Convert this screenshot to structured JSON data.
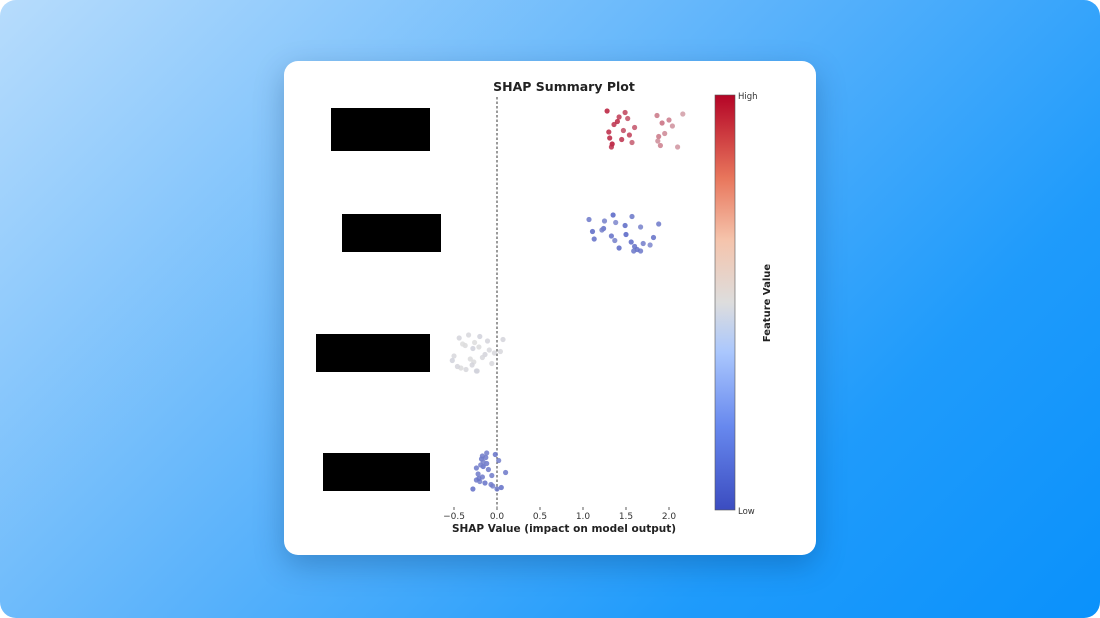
{
  "chart_data": {
    "type": "scatter",
    "title": "SHAP Summary Plot",
    "xlabel": "SHAP Value (impact on model output)",
    "xlim": [
      -0.6,
      2.35
    ],
    "xticks": [
      {
        "value": -0.5,
        "label": "−0.5"
      },
      {
        "value": 0.0,
        "label": "0.0"
      },
      {
        "value": 0.5,
        "label": "0.5"
      },
      {
        "value": 1.0,
        "label": "1.0"
      },
      {
        "value": 1.5,
        "label": "1.5"
      },
      {
        "value": 2.0,
        "label": "2.0"
      }
    ],
    "zero_line": "dashed",
    "features_redacted": true,
    "colorbar": {
      "label": "Feature Value",
      "high_label": "High",
      "low_label": "Low",
      "low_color": "#3b4cc0",
      "mid_color": "#dddddd",
      "high_color": "#b40426"
    },
    "series": [
      {
        "points": [
          {
            "x": 1.28,
            "f": 0.95
          },
          {
            "x": 1.31,
            "f": 0.93
          },
          {
            "x": 1.36,
            "f": 0.9
          },
          {
            "x": 1.34,
            "f": 0.97
          },
          {
            "x": 1.42,
            "f": 0.88
          },
          {
            "x": 1.3,
            "f": 0.92
          },
          {
            "x": 1.33,
            "f": 0.9
          },
          {
            "x": 1.4,
            "f": 0.92
          },
          {
            "x": 1.45,
            "f": 0.9
          },
          {
            "x": 1.49,
            "f": 0.86
          },
          {
            "x": 1.54,
            "f": 0.87
          },
          {
            "x": 1.6,
            "f": 0.82
          },
          {
            "x": 1.57,
            "f": 0.8
          },
          {
            "x": 1.52,
            "f": 0.83
          },
          {
            "x": 1.47,
            "f": 0.84
          },
          {
            "x": 1.9,
            "f": 0.72
          },
          {
            "x": 1.92,
            "f": 0.76
          },
          {
            "x": 1.88,
            "f": 0.74
          },
          {
            "x": 1.86,
            "f": 0.74
          },
          {
            "x": 1.95,
            "f": 0.7
          },
          {
            "x": 2.0,
            "f": 0.73
          },
          {
            "x": 1.87,
            "f": 0.69
          },
          {
            "x": 2.04,
            "f": 0.68
          },
          {
            "x": 2.1,
            "f": 0.67
          },
          {
            "x": 2.16,
            "f": 0.65
          }
        ]
      },
      {
        "points": [
          {
            "x": 1.35,
            "f": 0.08
          },
          {
            "x": 1.56,
            "f": 0.1
          },
          {
            "x": 1.24,
            "f": 0.12
          },
          {
            "x": 1.42,
            "f": 0.1
          },
          {
            "x": 1.25,
            "f": 0.18
          },
          {
            "x": 1.33,
            "f": 0.12
          },
          {
            "x": 1.67,
            "f": 0.15
          },
          {
            "x": 1.49,
            "f": 0.1
          },
          {
            "x": 1.7,
            "f": 0.17
          },
          {
            "x": 1.57,
            "f": 0.14
          },
          {
            "x": 1.13,
            "f": 0.12
          },
          {
            "x": 1.11,
            "f": 0.1
          },
          {
            "x": 1.6,
            "f": 0.12
          },
          {
            "x": 1.38,
            "f": 0.2
          },
          {
            "x": 1.5,
            "f": 0.08
          },
          {
            "x": 1.63,
            "f": 0.12
          },
          {
            "x": 1.67,
            "f": 0.18
          },
          {
            "x": 1.37,
            "f": 0.18
          },
          {
            "x": 1.07,
            "f": 0.15
          },
          {
            "x": 1.82,
            "f": 0.12
          },
          {
            "x": 1.88,
            "f": 0.15
          },
          {
            "x": 1.78,
            "f": 0.2
          },
          {
            "x": 1.22,
            "f": 0.18
          },
          {
            "x": 1.59,
            "f": 0.14
          }
        ]
      },
      {
        "points": [
          {
            "x": -0.33,
            "f": 0.48
          },
          {
            "x": -0.27,
            "f": 0.49
          },
          {
            "x": -0.28,
            "f": 0.46
          },
          {
            "x": -0.42,
            "f": 0.49
          },
          {
            "x": -0.11,
            "f": 0.47
          },
          {
            "x": -0.5,
            "f": 0.48
          },
          {
            "x": -0.23,
            "f": 0.47
          },
          {
            "x": -0.37,
            "f": 0.49
          },
          {
            "x": -0.06,
            "f": 0.48
          },
          {
            "x": -0.2,
            "f": 0.46
          },
          {
            "x": -0.31,
            "f": 0.49
          },
          {
            "x": 0.04,
            "f": 0.48
          },
          {
            "x": -0.46,
            "f": 0.47
          },
          {
            "x": -0.26,
            "f": 0.5
          },
          {
            "x": -0.14,
            "f": 0.47
          },
          {
            "x": -0.36,
            "f": 0.48
          },
          {
            "x": -0.21,
            "f": 0.49
          },
          {
            "x": -0.52,
            "f": 0.46
          },
          {
            "x": 0.07,
            "f": 0.47
          },
          {
            "x": -0.17,
            "f": 0.48
          },
          {
            "x": -0.4,
            "f": 0.5
          },
          {
            "x": -0.29,
            "f": 0.47
          },
          {
            "x": -0.09,
            "f": 0.48
          },
          {
            "x": -0.24,
            "f": 0.46
          },
          {
            "x": -0.44,
            "f": 0.47
          },
          {
            "x": -0.03,
            "f": 0.48
          }
        ]
      },
      {
        "points": [
          {
            "x": -0.12,
            "f": 0.17
          },
          {
            "x": -0.24,
            "f": 0.15
          },
          {
            "x": -0.16,
            "f": 0.12
          },
          {
            "x": -0.05,
            "f": 0.18
          },
          {
            "x": -0.18,
            "f": 0.14
          },
          {
            "x": -0.22,
            "f": 0.16
          },
          {
            "x": -0.28,
            "f": 0.12
          },
          {
            "x": -0.12,
            "f": 0.15
          },
          {
            "x": -0.2,
            "f": 0.18
          },
          {
            "x": -0.02,
            "f": 0.13
          },
          {
            "x": -0.17,
            "f": 0.16
          },
          {
            "x": -0.1,
            "f": 0.15
          },
          {
            "x": -0.07,
            "f": 0.17
          },
          {
            "x": 0.02,
            "f": 0.18
          },
          {
            "x": 0.1,
            "f": 0.15
          },
          {
            "x": 0.05,
            "f": 0.12
          },
          {
            "x": -0.19,
            "f": 0.17
          },
          {
            "x": -0.21,
            "f": 0.14
          },
          {
            "x": -0.13,
            "f": 0.15
          },
          {
            "x": -0.06,
            "f": 0.16
          },
          {
            "x": -0.16,
            "f": 0.18
          },
          {
            "x": -0.14,
            "f": 0.13
          },
          {
            "x": -0.24,
            "f": 0.15
          },
          {
            "x": 0.0,
            "f": 0.14
          },
          {
            "x": -0.17,
            "f": 0.16
          }
        ]
      }
    ]
  }
}
